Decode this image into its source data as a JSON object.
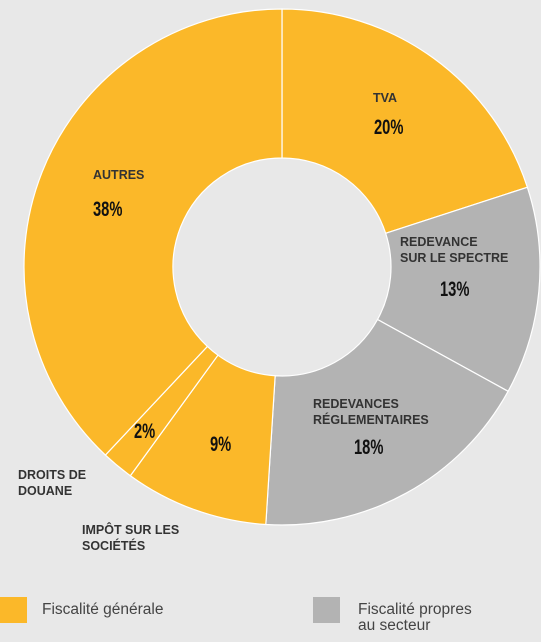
{
  "chart_data": {
    "type": "donut",
    "categories": [
      "TVA",
      "REDEVANCE\nSUR LE SPECTRE",
      "REDEVANCES\nRÉGLEMENTAIRES",
      "IMPÔT SUR LES\nSOCIÉTÉS",
      "DROITS DE\nDOUANE",
      "AUTRES"
    ],
    "values": [
      20,
      13,
      18,
      9,
      2,
      38
    ],
    "value_labels": [
      "20%",
      "13%",
      "18%",
      "9%",
      "2%",
      "38%"
    ],
    "colors": [
      "#fbb829",
      "#b3b3b3",
      "#b3b3b3",
      "#fbb829",
      "#fbb829",
      "#fbb829"
    ],
    "legend": [
      {
        "name": "Fiscalité générale",
        "color": "#fbb829"
      },
      {
        "name": "Fiscalité propres\nau secteur",
        "color": "#b3b3b3"
      }
    ]
  }
}
